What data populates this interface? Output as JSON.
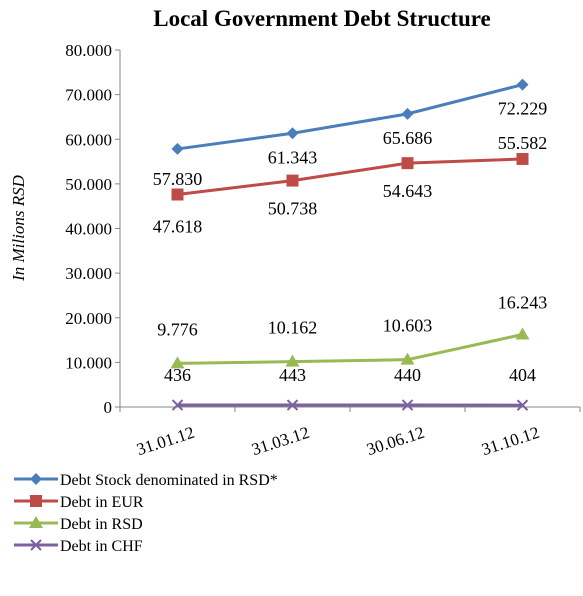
{
  "chart_data": {
    "type": "line",
    "title": "Local Government Debt Structure",
    "xlabel": "",
    "ylabel": "In Milions RSD",
    "categories": [
      "31.01.12",
      "31.03.12",
      "30.06.12",
      "31.10.12"
    ],
    "ylim": [
      0,
      80000
    ],
    "yticks": [
      0,
      10000,
      20000,
      30000,
      40000,
      50000,
      60000,
      70000,
      80000
    ],
    "ytick_labels": [
      "0",
      "10.000",
      "20.000",
      "30.000",
      "40.000",
      "50.000",
      "60.000",
      "70.000",
      "80.000"
    ],
    "grid": false,
    "legend_position": "bottom",
    "series": [
      {
        "name": "Debt Stock denominated in RSD*",
        "color": "#4a7ebb",
        "marker": "diamond",
        "values": [
          57830,
          61343,
          65686,
          72229
        ],
        "labels": [
          "57.830",
          "61.343",
          "65.686",
          "72.229"
        ]
      },
      {
        "name": "Debt in EUR",
        "color": "#be4b48",
        "marker": "square",
        "values": [
          47618,
          50738,
          54643,
          55582
        ],
        "labels": [
          "47.618",
          "50.738",
          "54.643",
          "55.582"
        ]
      },
      {
        "name": "Debt in RSD",
        "color": "#98b954",
        "marker": "triangle",
        "values": [
          9776,
          10162,
          10603,
          16243
        ],
        "labels": [
          "9.776",
          "10.162",
          "10.603",
          "16.243"
        ]
      },
      {
        "name": "Debt in CHF",
        "color": "#7d60a0",
        "marker": "x",
        "values": [
          436,
          443,
          440,
          404
        ],
        "labels": [
          "436",
          "443",
          "440",
          "404"
        ]
      }
    ]
  }
}
